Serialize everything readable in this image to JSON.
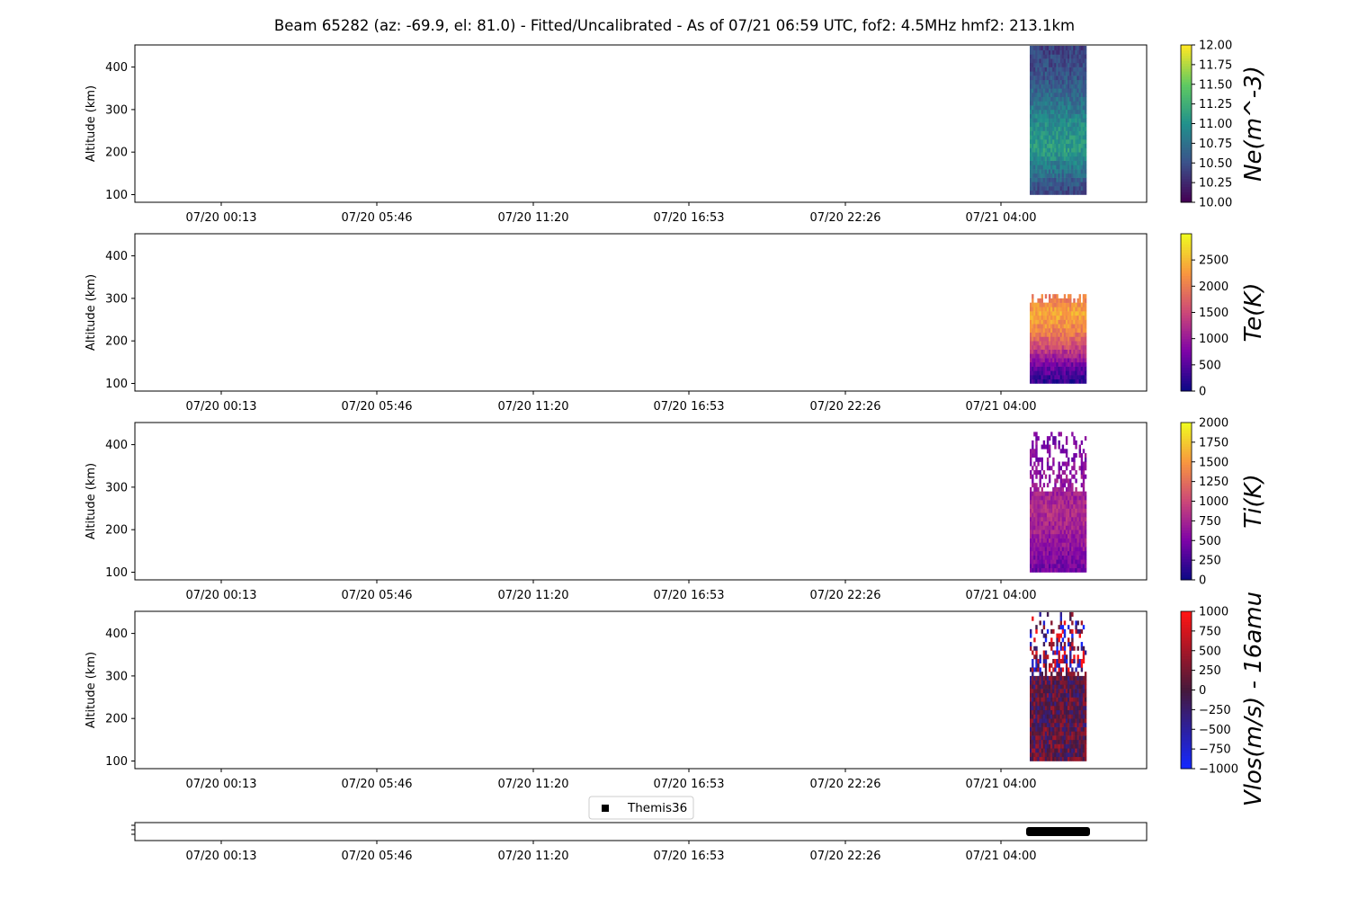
{
  "chart_data": {
    "type": "heatmap",
    "title": "Beam 65282 (az: -69.9, el: 81.0) - Fitted/Uncalibrated - As of 07/21 06:59 UTC, fof2: 4.5MHz  hmf2: 213.1km",
    "x_tick_labels": [
      "07/20 00:13",
      "07/20 05:46",
      "07/20 11:20",
      "07/20 16:53",
      "07/20 22:26",
      "07/21 04:00"
    ],
    "ylabel": "Altitude (km)",
    "y_ticks": [
      100,
      200,
      300,
      400
    ],
    "ylim": [
      82,
      452
    ],
    "data_time_window": [
      "07/21 04:50",
      "07/21 06:59"
    ],
    "panels": [
      {
        "id": "ne",
        "ylabel": "Altitude (km)",
        "colorbar_label": "Ne(m^-3)",
        "colorbar_ticks": [
          "10.00",
          "10.25",
          "10.50",
          "10.75",
          "11.00",
          "11.25",
          "11.50",
          "11.75",
          "12.00"
        ],
        "clim": [
          10.0,
          12.0
        ],
        "colormap": "viridis",
        "altitude_range": [
          100,
          450
        ],
        "profile": [
          [
            100,
            10.4
          ],
          [
            150,
            10.75
          ],
          [
            200,
            11.1
          ],
          [
            250,
            11.0
          ],
          [
            300,
            10.8
          ],
          [
            350,
            10.6
          ],
          [
            400,
            10.45
          ],
          [
            450,
            10.4
          ]
        ]
      },
      {
        "id": "te",
        "ylabel": "Altitude (km)",
        "colorbar_label": "Te(K)",
        "colorbar_ticks": [
          "0",
          "500",
          "1000",
          "1500",
          "2000",
          "2500"
        ],
        "clim": [
          0,
          3000
        ],
        "colormap": "plasma",
        "altitude_range": [
          100,
          310
        ],
        "profile": [
          [
            100,
            250
          ],
          [
            140,
            700
          ],
          [
            180,
            1500
          ],
          [
            220,
            2100
          ],
          [
            260,
            2400
          ],
          [
            300,
            2000
          ]
        ]
      },
      {
        "id": "ti",
        "ylabel": "Altitude (km)",
        "colorbar_label": "Ti(K)",
        "colorbar_ticks": [
          "0",
          "250",
          "500",
          "750",
          "1000",
          "1250",
          "1500",
          "1750",
          "2000"
        ],
        "clim": [
          0,
          2000
        ],
        "colormap": "plasma",
        "altitude_range": [
          100,
          430
        ],
        "profile": [
          [
            100,
            450
          ],
          [
            150,
            600
          ],
          [
            200,
            750
          ],
          [
            250,
            800
          ],
          [
            300,
            650
          ],
          [
            350,
            550
          ],
          [
            420,
            500
          ]
        ]
      },
      {
        "id": "vlos",
        "ylabel": "Altitude (km)",
        "colorbar_label": "Vlos(m/s) - 16amu",
        "colorbar_ticks": [
          "1000",
          "750",
          "500",
          "250",
          "0",
          "−250",
          "−500",
          "−750",
          "−1000"
        ],
        "clim": [
          -1000,
          1000
        ],
        "colormap": "bwr-dark",
        "altitude_range": [
          100,
          450
        ],
        "profile": [
          [
            100,
            100
          ],
          [
            200,
            50
          ],
          [
            300,
            0
          ],
          [
            400,
            0
          ]
        ]
      }
    ],
    "legend": {
      "entries": [
        "Themis36"
      ],
      "placement": "top-center of bottom panel"
    },
    "themis36_interval": [
      "07/21 04:50",
      "07/21 06:59"
    ],
    "colors": {
      "themis36_marker": "#000000",
      "axes": "#000000"
    }
  }
}
